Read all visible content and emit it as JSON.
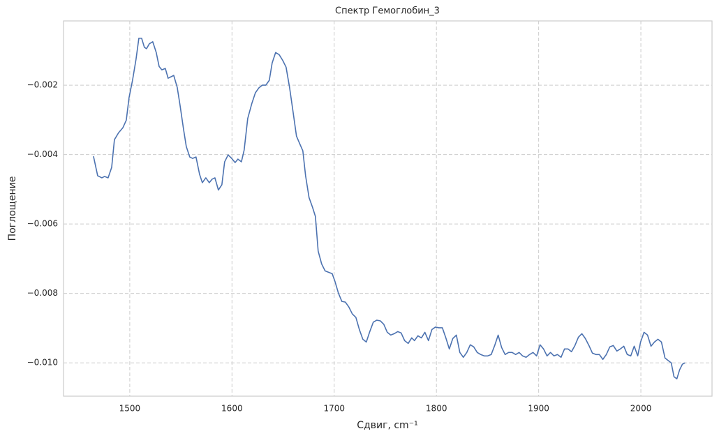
{
  "chart_data": {
    "type": "line",
    "title": "Спектр Гемоглобин_3",
    "xlabel": "Сдвиг, cm⁻¹",
    "ylabel": "Поглощение",
    "xlim": [
      1435.2,
      2069.6
    ],
    "ylim": [
      -0.01096,
      -0.00015
    ],
    "xticks": [
      1500,
      1600,
      1700,
      1800,
      1900,
      2000
    ],
    "yticks": [
      {
        "value": -0.01,
        "label": "−0.010"
      },
      {
        "value": -0.008,
        "label": "−0.008"
      },
      {
        "value": -0.006,
        "label": "−0.006"
      },
      {
        "value": -0.004,
        "label": "−0.004"
      },
      {
        "value": -0.002,
        "label": "−0.002"
      }
    ],
    "grid": true,
    "series": [
      {
        "color": "#4c72b0",
        "x": [
          1464.5,
          1468.6,
          1472.7,
          1475.4,
          1478.8,
          1482.3,
          1485.0,
          1489.1,
          1493.2,
          1496.6,
          1499.3,
          1502.7,
          1506.1,
          1508.9,
          1511.6,
          1514.3,
          1516.4,
          1519.1,
          1522.5,
          1525.9,
          1528.7,
          1531.4,
          1534.8,
          1537.5,
          1540.3,
          1543.0,
          1546.4,
          1549.1,
          1552.6,
          1555.3,
          1558.7,
          1561.4,
          1564.8,
          1568.3,
          1571.0,
          1574.4,
          1577.8,
          1580.5,
          1583.3,
          1586.7,
          1590.1,
          1592.8,
          1596.2,
          1599.7,
          1603.1,
          1605.8,
          1609.2,
          1611.9,
          1615.4,
          1619.5,
          1622.9,
          1626.3,
          1629.7,
          1633.1,
          1636.5,
          1639.3,
          1642.7,
          1646.1,
          1649.5,
          1652.9,
          1656.3,
          1659.7,
          1663.1,
          1666.6,
          1669.3,
          1672.0,
          1675.4,
          1678.8,
          1681.6,
          1684.3,
          1687.7,
          1691.1,
          1694.5,
          1698.0,
          1700.7,
          1704.1,
          1707.5,
          1710.9,
          1714.3,
          1717.7,
          1721.2,
          1724.6,
          1728.0,
          1731.4,
          1734.8,
          1738.2,
          1741.6,
          1745.1,
          1748.5,
          1751.9,
          1755.3,
          1758.7,
          1762.1,
          1765.5,
          1768.9,
          1772.4,
          1775.8,
          1778.5,
          1781.9,
          1785.3,
          1788.7,
          1792.2,
          1795.6,
          1799.0,
          1802.4,
          1805.8,
          1809.2,
          1812.6,
          1816.0,
          1819.5,
          1822.9,
          1826.3,
          1829.7,
          1833.1,
          1836.5,
          1839.9,
          1843.3,
          1846.8,
          1850.2,
          1853.6,
          1857.0,
          1860.4,
          1863.8,
          1867.2,
          1870.6,
          1874.1,
          1877.5,
          1880.9,
          1884.3,
          1887.7,
          1891.1,
          1894.5,
          1898.0,
          1901.4,
          1904.8,
          1908.2,
          1911.6,
          1915.0,
          1918.4,
          1921.9,
          1925.3,
          1928.7,
          1932.1,
          1935.5,
          1938.9,
          1942.3,
          1945.7,
          1949.2,
          1952.6,
          1956.0,
          1959.4,
          1962.8,
          1966.2,
          1969.6,
          1973.0,
          1976.5,
          1979.9,
          1983.3,
          1986.7,
          1990.1,
          1993.5,
          1996.9,
          1999.7,
          2003.1,
          2006.5,
          2009.9,
          2013.3,
          2016.7,
          2020.1,
          2023.6,
          2027.0,
          2029.7,
          2032.4,
          2035.2,
          2037.9,
          2040.6,
          2043.3
        ],
        "values": [
          -0.00405,
          -0.00461,
          -0.00467,
          -0.00463,
          -0.00467,
          -0.00437,
          -0.00357,
          -0.00337,
          -0.00323,
          -0.00301,
          -0.00236,
          -0.00186,
          -0.00126,
          -0.00065,
          -0.00065,
          -0.00091,
          -0.00095,
          -0.00081,
          -0.00075,
          -0.00106,
          -0.00146,
          -0.00156,
          -0.00152,
          -0.0018,
          -0.00176,
          -0.00172,
          -0.00206,
          -0.00256,
          -0.00327,
          -0.00377,
          -0.00407,
          -0.00411,
          -0.00407,
          -0.00457,
          -0.00481,
          -0.00467,
          -0.00481,
          -0.00471,
          -0.00467,
          -0.00502,
          -0.00487,
          -0.00421,
          -0.00401,
          -0.00411,
          -0.00423,
          -0.00413,
          -0.00421,
          -0.00387,
          -0.00296,
          -0.00252,
          -0.00222,
          -0.00208,
          -0.002,
          -0.002,
          -0.00186,
          -0.00136,
          -0.00106,
          -0.00112,
          -0.00128,
          -0.00148,
          -0.00206,
          -0.00276,
          -0.00347,
          -0.00371,
          -0.00389,
          -0.00461,
          -0.00524,
          -0.00552,
          -0.00578,
          -0.00678,
          -0.00715,
          -0.00735,
          -0.00739,
          -0.00743,
          -0.00765,
          -0.00799,
          -0.00823,
          -0.00825,
          -0.00839,
          -0.00859,
          -0.00869,
          -0.00904,
          -0.00932,
          -0.0094,
          -0.0091,
          -0.00883,
          -0.00877,
          -0.00879,
          -0.00889,
          -0.00912,
          -0.0092,
          -0.00916,
          -0.0091,
          -0.00914,
          -0.00936,
          -0.00944,
          -0.00928,
          -0.00936,
          -0.00922,
          -0.00928,
          -0.00912,
          -0.00936,
          -0.00904,
          -0.00897,
          -0.00899,
          -0.00899,
          -0.00928,
          -0.0096,
          -0.0093,
          -0.0092,
          -0.0097,
          -0.00984,
          -0.0097,
          -0.00948,
          -0.00954,
          -0.0097,
          -0.00976,
          -0.0098,
          -0.0098,
          -0.00976,
          -0.0095,
          -0.0092,
          -0.00956,
          -0.00976,
          -0.0097,
          -0.0097,
          -0.00976,
          -0.0097,
          -0.0098,
          -0.00984,
          -0.00976,
          -0.0097,
          -0.0098,
          -0.00948,
          -0.0096,
          -0.0098,
          -0.0097,
          -0.0098,
          -0.00976,
          -0.00984,
          -0.0096,
          -0.0096,
          -0.00968,
          -0.0095,
          -0.00926,
          -0.00916,
          -0.0093,
          -0.0095,
          -0.00972,
          -0.00976,
          -0.00976,
          -0.0099,
          -0.00976,
          -0.00954,
          -0.0095,
          -0.00966,
          -0.0096,
          -0.00952,
          -0.00976,
          -0.0098,
          -0.00952,
          -0.0098,
          -0.0094,
          -0.00912,
          -0.0092,
          -0.00952,
          -0.0094,
          -0.00932,
          -0.0094,
          -0.00986,
          -0.00994,
          -0.01,
          -0.0104,
          -0.01046,
          -0.0102,
          -0.01004,
          -0.01
        ]
      }
    ]
  }
}
